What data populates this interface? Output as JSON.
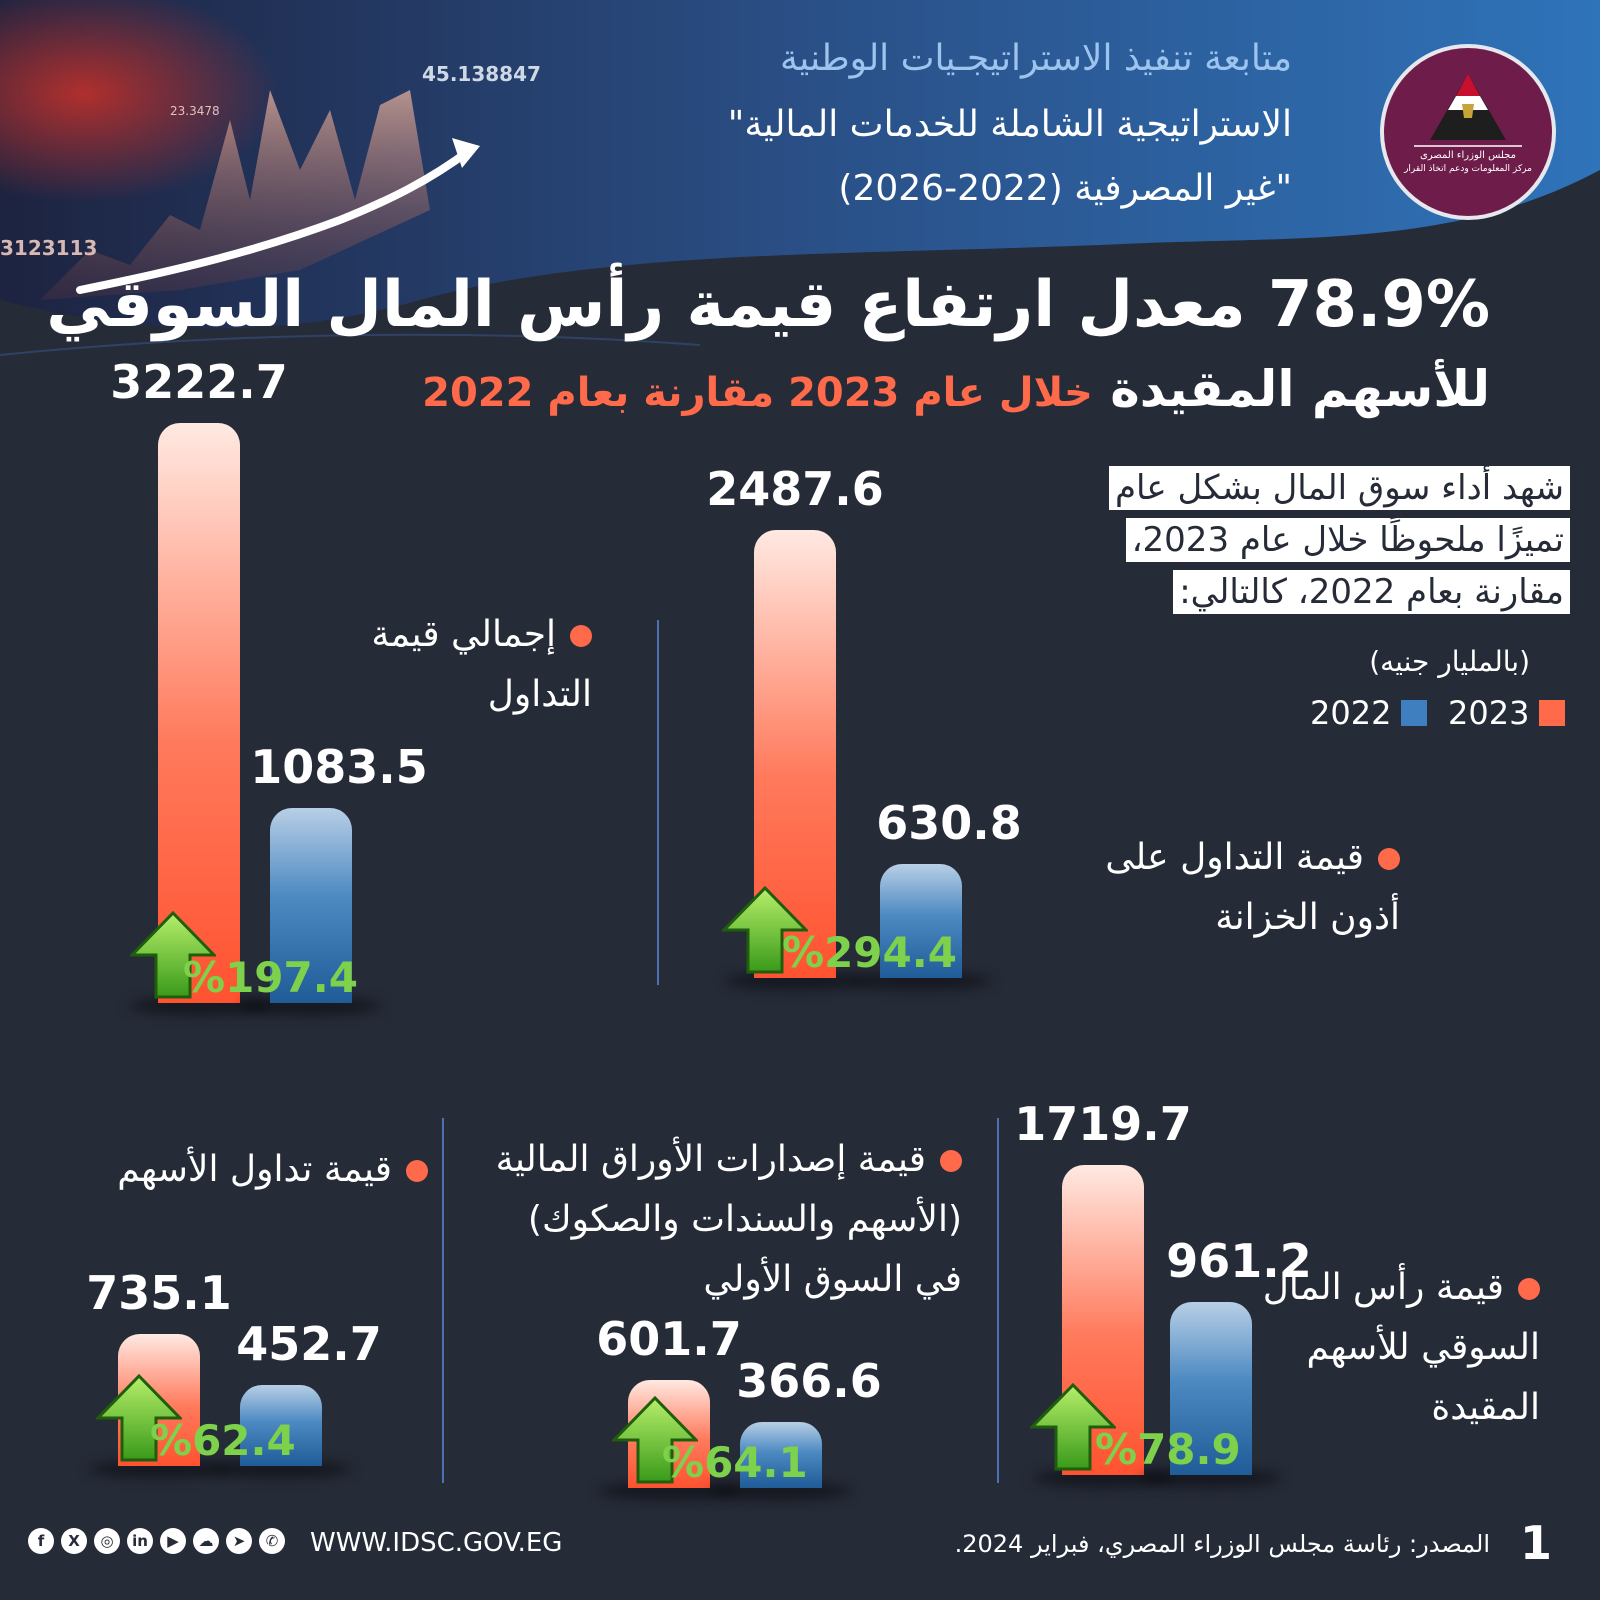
{
  "header": {
    "line1": "متابعة تنفيذ الاستراتيجـيات الوطنية",
    "line2": "\"الاستراتيجية الشاملة للخدمات المالية",
    "line3": "غير المصرفية (2022-2026)\"",
    "ticker_top": "45.138847",
    "ticker_mid": "23.3478",
    "ticker_left": "3123113",
    "logo_line1": "مجلس الوزراء المصرى",
    "logo_line2": "مركز المعلومات ودعم اتخاذ القرار"
  },
  "headline": {
    "line1": "78.9% معدل ارتفاع قيمة رأس المال السوقي",
    "line2_main": "للأسهم المقيدة",
    "line2_accent": "خلال عام 2023 مقارنة بعام 2022"
  },
  "intro": {
    "line1": "شهد أداء سوق المال بشكل عام",
    "line2": "تميزًا ملحوظًا خلال عام 2023،",
    "line3": "مقارنة بعام 2022، كالتالي:",
    "unit": "(بالمليار جنيه)"
  },
  "legend": {
    "y2023": "2023",
    "y2022": "2022",
    "color_2023": "#ff6a4a",
    "color_2022": "#3f7fbf"
  },
  "chart_data": [
    {
      "type": "bar",
      "title": "إجمالي قيمة التداول",
      "title_line1": "إجمالي قيمة",
      "title_line2": "التداول",
      "categories": [
        "2023",
        "2022"
      ],
      "values": [
        3222.7,
        1083.5
      ],
      "value_labels": [
        "3222.7",
        "1083.5"
      ],
      "change_label": "%197.4",
      "unit": "مليار جنيه"
    },
    {
      "type": "bar",
      "title": "قيمة التداول على أذون الخزانة",
      "title_line1": "قيمة التداول على",
      "title_line2": "أذون الخزانة",
      "categories": [
        "2023",
        "2022"
      ],
      "values": [
        2487.6,
        630.8
      ],
      "value_labels": [
        "2487.6",
        "630.8"
      ],
      "change_label": "%294.4",
      "unit": "مليار جنيه"
    },
    {
      "type": "bar",
      "title": "قيمة تداول الأسهم",
      "title_line1": "قيمة تداول الأسهم",
      "categories": [
        "2023",
        "2022"
      ],
      "values": [
        735.1,
        452.7
      ],
      "value_labels": [
        "735.1",
        "452.7"
      ],
      "change_label": "%62.4",
      "unit": "مليار جنيه"
    },
    {
      "type": "bar",
      "title": "قيمة إصدارات الأوراق المالية (الأسهم والسندات والصكوك) في السوق الأولي",
      "title_line1": "قيمة إصدارات الأوراق المالية",
      "title_line2": "(الأسهم والسندات والصكوك)",
      "title_line3": "في السوق الأولي",
      "categories": [
        "2023",
        "2022"
      ],
      "values": [
        601.7,
        366.6
      ],
      "value_labels": [
        "601.7",
        "366.6"
      ],
      "change_label": "%64.1",
      "unit": "مليار جنيه"
    },
    {
      "type": "bar",
      "title": "قيمة رأس المال السوقي للأسهم المقيدة",
      "title_line1": "قيمة رأس المال",
      "title_line2": "السوقي للأسهم",
      "title_line3": "المقيدة",
      "categories": [
        "2023",
        "2022"
      ],
      "values": [
        1719.7,
        961.2
      ],
      "value_labels": [
        "1719.7",
        "961.2"
      ],
      "change_label": "%78.9",
      "unit": "مليار جنيه"
    }
  ],
  "footer": {
    "url": "WWW.IDSC.GOV.EG",
    "source": "المصدر: رئاسة مجلس الوزراء المصري، فبراير 2024.",
    "page_number": "1",
    "social_icons": [
      "facebook-icon",
      "x-icon",
      "instagram-icon",
      "linkedin-icon",
      "youtube-icon",
      "soundcloud-icon",
      "telegram-icon",
      "whatsapp-icon"
    ]
  }
}
